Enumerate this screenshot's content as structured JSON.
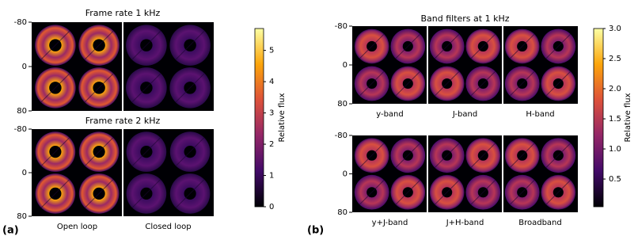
{
  "panels": [
    {
      "label": "(a)",
      "colorbar": {
        "label": "Relative flux",
        "lim": [
          0,
          5.7
        ],
        "ticks": [
          0,
          1,
          2,
          3,
          4,
          5
        ]
      },
      "rows": [
        {
          "title": "Frame rate 1 kHz",
          "ylim": [
            -80,
            80
          ],
          "yticks": [
            -80,
            0,
            80
          ]
        },
        {
          "title": "Frame rate 2 kHz",
          "ylim": [
            -80,
            80
          ],
          "yticks": [
            -80,
            0,
            80
          ],
          "column_labels": [
            "Open loop",
            "Closed loop"
          ]
        }
      ]
    },
    {
      "label": "(b)",
      "colorbar": {
        "label": "Relative flux",
        "lim": [
          0.04,
          3.0
        ],
        "ticks": [
          0.5,
          {
            "value": 1,
            "label": "1.0"
          },
          1.5,
          {
            "value": 2,
            "label": "2.0"
          },
          2.5,
          {
            "value": 3,
            "label": "3.0"
          }
        ]
      },
      "rows": [
        {
          "title": "Band filters at 1 kHz",
          "ylim": [
            -80,
            80
          ],
          "yticks": [
            -80,
            0,
            80
          ],
          "column_labels": [
            "y-band",
            "J-band",
            "H-band"
          ]
        },
        {
          "ylim": [
            -80,
            80
          ],
          "yticks": [
            -80,
            0,
            80
          ],
          "column_labels": [
            "y+J-band",
            "J+H-band",
            "Broadband"
          ]
        }
      ]
    }
  ]
}
